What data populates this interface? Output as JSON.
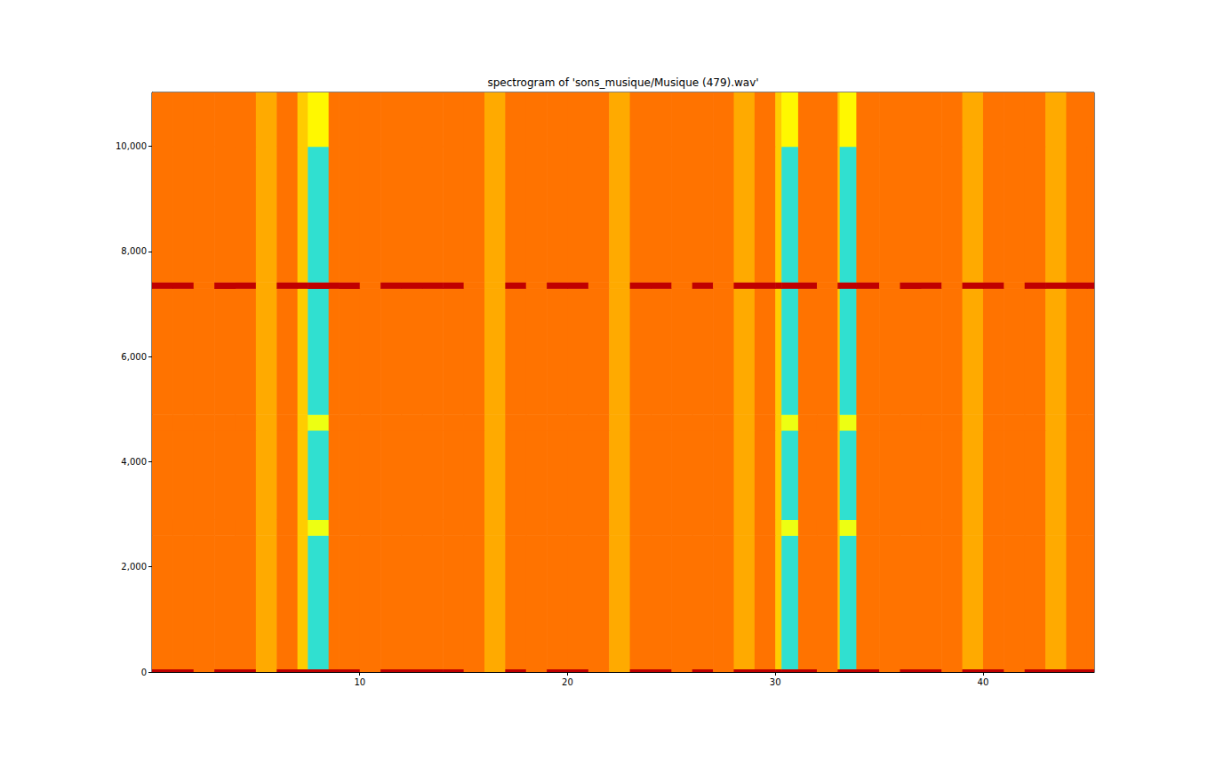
{
  "chart_data": {
    "type": "heatmap",
    "title": "spectrogram of 'sons_musique/Musique (479).wav'",
    "x_edges": [
      0,
      1,
      2,
      3,
      4,
      5,
      6,
      7,
      7.5,
      8.5,
      9,
      10,
      11,
      12,
      13,
      14,
      15,
      16,
      17,
      18,
      19,
      20,
      21,
      22,
      23,
      24,
      25,
      26,
      27,
      28,
      29,
      30,
      30.3,
      31.1,
      32,
      33,
      33.1,
      33.9,
      35,
      36,
      37,
      38,
      39,
      40,
      41,
      42,
      43,
      44,
      45,
      45.35
    ],
    "y_edges": [
      0,
      60,
      2600,
      2900,
      4600,
      4900,
      7300,
      7420,
      10000,
      11025
    ],
    "cells": [
      [
        88,
        88,
        72,
        88,
        88,
        67,
        88,
        88,
        88,
        88,
        88,
        72,
        88,
        88,
        88,
        88,
        72,
        67,
        88,
        72,
        88,
        88,
        72,
        67,
        88,
        88,
        72,
        88,
        72,
        88,
        88,
        88,
        88,
        88,
        72,
        88,
        88,
        88,
        72,
        88,
        88,
        72,
        88,
        88,
        72,
        88,
        88,
        88,
        88
      ],
      [
        72,
        72,
        72,
        72,
        72,
        67,
        72,
        64,
        45,
        72,
        72,
        72,
        72,
        72,
        72,
        72,
        72,
        67,
        72,
        72,
        72,
        72,
        72,
        67,
        72,
        72,
        72,
        72,
        72,
        67,
        72,
        64,
        45,
        72,
        72,
        64,
        45,
        72,
        72,
        72,
        72,
        72,
        67,
        72,
        72,
        72,
        67,
        72,
        72
      ],
      [
        72,
        72,
        72,
        72,
        72,
        67,
        72,
        64,
        58,
        72,
        72,
        72,
        72,
        72,
        72,
        72,
        72,
        67,
        72,
        72,
        72,
        72,
        72,
        67,
        72,
        72,
        72,
        72,
        72,
        67,
        72,
        64,
        58,
        72,
        72,
        64,
        58,
        72,
        72,
        72,
        72,
        72,
        67,
        72,
        72,
        72,
        67,
        72,
        72
      ],
      [
        72,
        72,
        72,
        72,
        72,
        67,
        72,
        64,
        45,
        72,
        72,
        72,
        72,
        72,
        72,
        72,
        72,
        67,
        72,
        72,
        72,
        72,
        72,
        67,
        72,
        72,
        72,
        72,
        72,
        67,
        72,
        64,
        45,
        72,
        72,
        64,
        45,
        72,
        72,
        72,
        72,
        72,
        67,
        72,
        72,
        72,
        67,
        72,
        72
      ],
      [
        72,
        72,
        72,
        72,
        72,
        67,
        72,
        64,
        58,
        72,
        72,
        72,
        72,
        72,
        72,
        72,
        72,
        67,
        72,
        72,
        72,
        72,
        72,
        67,
        72,
        72,
        72,
        72,
        72,
        67,
        72,
        64,
        58,
        72,
        72,
        64,
        58,
        72,
        72,
        72,
        72,
        72,
        67,
        72,
        72,
        72,
        67,
        72,
        72
      ],
      [
        72,
        72,
        72,
        72,
        72,
        67,
        72,
        64,
        45,
        72,
        72,
        72,
        72,
        72,
        72,
        72,
        72,
        67,
        72,
        72,
        72,
        72,
        72,
        67,
        72,
        72,
        72,
        72,
        72,
        67,
        72,
        64,
        45,
        72,
        72,
        64,
        45,
        72,
        72,
        72,
        72,
        72,
        67,
        72,
        72,
        72,
        67,
        72,
        72
      ],
      [
        88,
        88,
        72,
        88,
        88,
        67,
        88,
        88,
        88,
        88,
        88,
        72,
        88,
        88,
        88,
        88,
        72,
        67,
        88,
        72,
        88,
        88,
        72,
        67,
        88,
        88,
        72,
        88,
        72,
        88,
        88,
        88,
        88,
        88,
        72,
        88,
        88,
        88,
        72,
        88,
        88,
        72,
        88,
        88,
        72,
        88,
        88,
        88,
        88
      ],
      [
        72,
        72,
        72,
        72,
        72,
        67,
        72,
        64,
        45,
        72,
        72,
        72,
        72,
        72,
        72,
        72,
        72,
        67,
        72,
        72,
        72,
        72,
        72,
        67,
        72,
        72,
        72,
        72,
        72,
        67,
        72,
        64,
        45,
        72,
        72,
        64,
        45,
        72,
        72,
        72,
        72,
        72,
        67,
        72,
        72,
        72,
        67,
        72,
        72
      ],
      [
        72,
        72,
        72,
        72,
        72,
        67,
        72,
        64,
        60,
        72,
        72,
        72,
        72,
        72,
        72,
        72,
        72,
        67,
        72,
        72,
        72,
        72,
        72,
        67,
        72,
        72,
        72,
        72,
        72,
        67,
        72,
        64,
        60,
        72,
        72,
        64,
        60,
        72,
        72,
        72,
        72,
        72,
        67,
        72,
        72,
        72,
        67,
        72,
        72
      ]
    ],
    "xlim": [
      0,
      45.35
    ],
    "ylim": [
      0,
      11025
    ],
    "xticks": [
      10,
      20,
      30,
      40
    ],
    "yticks": [
      0,
      2000,
      4000,
      6000,
      8000,
      10000
    ],
    "grid": false
  }
}
